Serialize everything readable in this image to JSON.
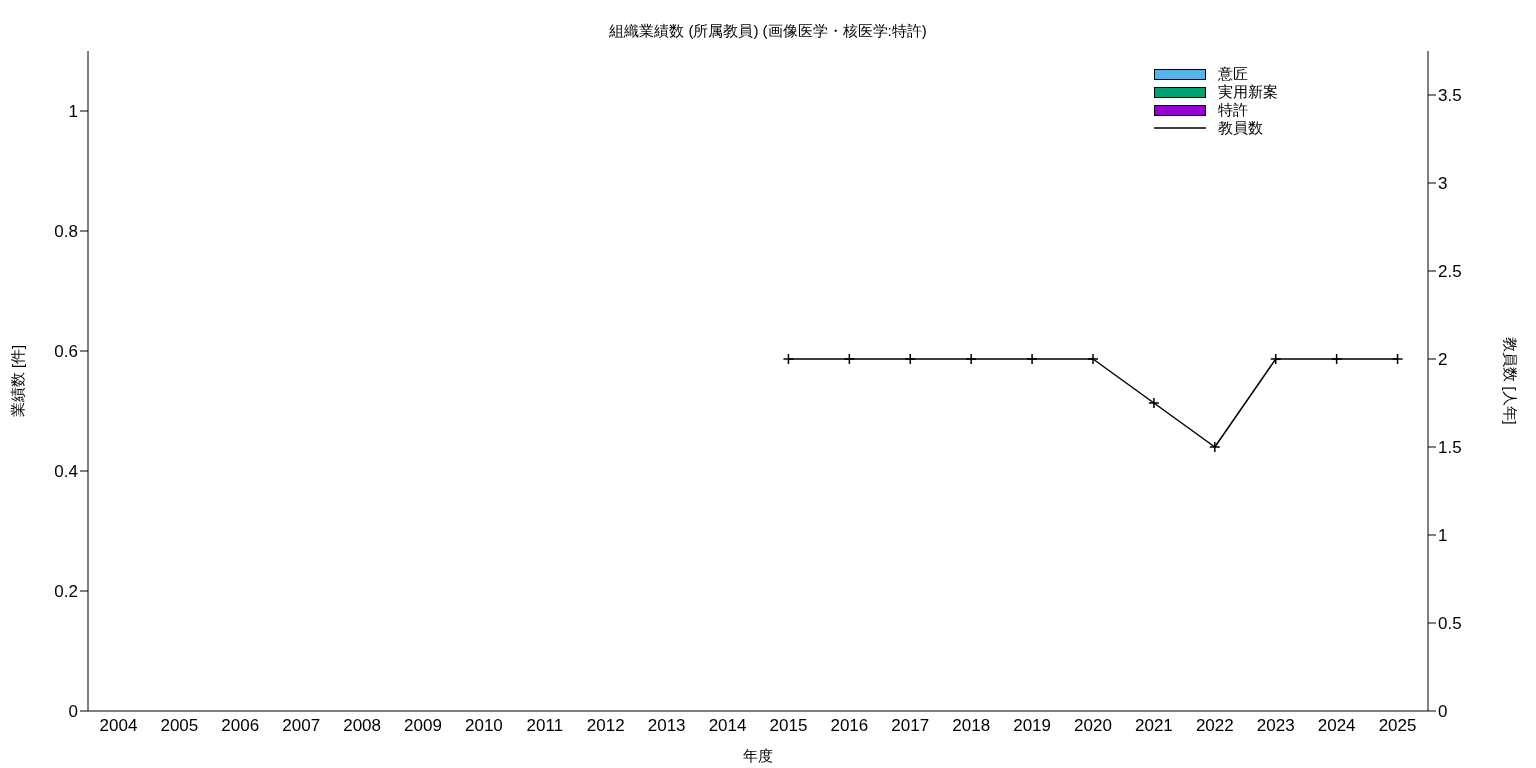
{
  "chart_data": {
    "type": "bar",
    "title": "組織業績数 (所属教員) (画像医学・核医学:特許)",
    "xlabel": "年度",
    "ylabel": "業績数 [件]",
    "y2label": "教員数 [人年]",
    "categories": [
      "2004",
      "2005",
      "2006",
      "2007",
      "2008",
      "2009",
      "2010",
      "2011",
      "2012",
      "2013",
      "2014",
      "2015",
      "2016",
      "2017",
      "2018",
      "2019",
      "2020",
      "2021",
      "2022",
      "2023",
      "2024",
      "2025"
    ],
    "series": [
      {
        "name": "意匠",
        "color": "#56b4e9",
        "values": [
          0,
          0,
          0,
          0,
          0,
          0,
          0,
          0,
          0,
          0,
          0,
          0,
          0,
          0,
          0,
          0,
          0,
          0,
          0,
          0,
          0,
          0
        ]
      },
      {
        "name": "実用新案",
        "color": "#009e73",
        "values": [
          0,
          0,
          0,
          0,
          0,
          0,
          0,
          0,
          0,
          0,
          0,
          0,
          0,
          0,
          0,
          0,
          0,
          0,
          0,
          0,
          0,
          0
        ]
      },
      {
        "name": "特許",
        "color": "#9400d3",
        "values": [
          0,
          0,
          0,
          0,
          0,
          0,
          0,
          0,
          0,
          0,
          0,
          0,
          0,
          0,
          0,
          0,
          0,
          0,
          0,
          0,
          0,
          0
        ]
      },
      {
        "name": "教員数",
        "type": "line",
        "axis": "y2",
        "color": "#000000",
        "marker": "cross",
        "values": [
          null,
          null,
          null,
          null,
          null,
          null,
          null,
          null,
          null,
          null,
          null,
          2,
          2,
          2,
          2,
          2,
          2,
          1.75,
          1.5,
          2,
          2,
          2
        ]
      }
    ],
    "ylim": [
      0,
      1.1
    ],
    "yticks": [
      0,
      0.2,
      0.4,
      0.6,
      0.8,
      1
    ],
    "y2lim": [
      0,
      3.75
    ],
    "y2ticks": [
      0,
      0.5,
      1,
      1.5,
      2,
      2.5,
      3,
      3.5
    ],
    "grid": false,
    "legend": "top right"
  }
}
